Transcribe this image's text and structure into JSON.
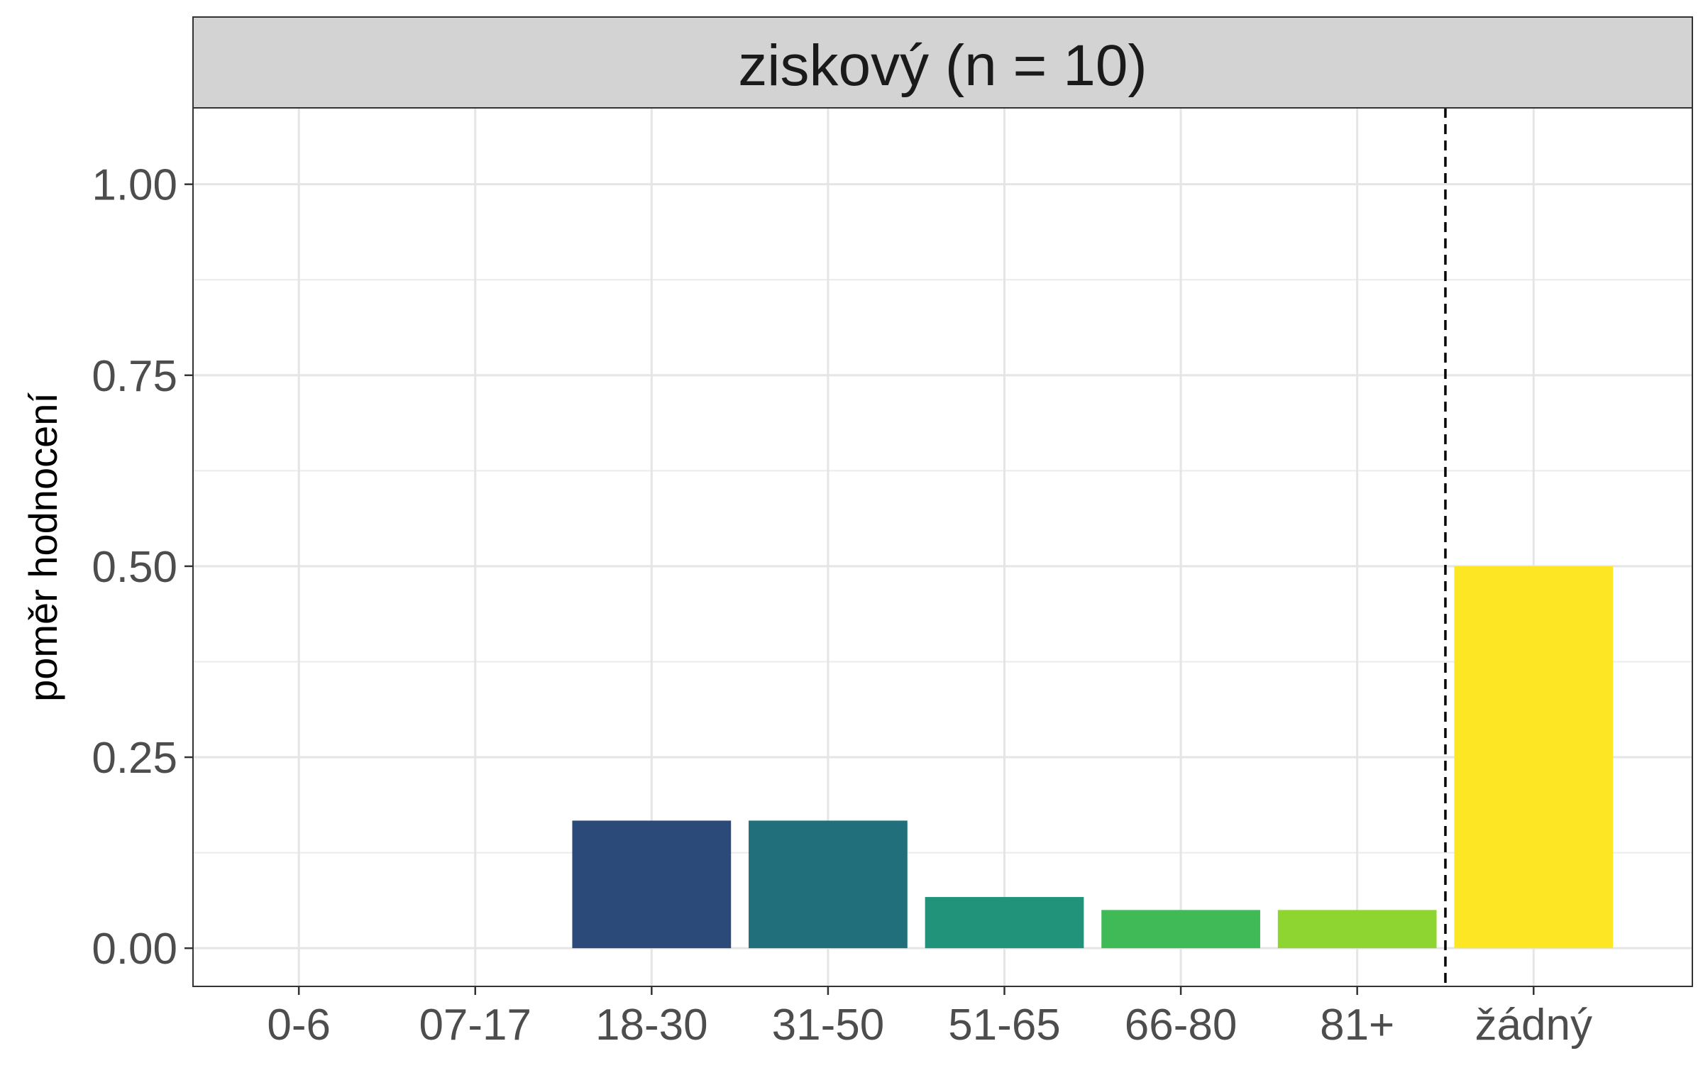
{
  "chart_data": {
    "type": "bar",
    "facet_title": "ziskový (n = 10)",
    "xlabel": "",
    "ylabel": "poměr hodnocení",
    "categories": [
      "0-6",
      "07-17",
      "18-30",
      "31-50",
      "51-65",
      "66-80",
      "81+",
      "žádný"
    ],
    "values": [
      0,
      0,
      0.167,
      0.167,
      0.067,
      0.05,
      0.05,
      0.5
    ],
    "colors": [
      "#440154",
      "#46337e",
      "#2b4a7a",
      "#216f7a",
      "#21937a",
      "#3fba57",
      "#8fd532",
      "#fde725"
    ],
    "ylim": [
      -0.05,
      1.1
    ],
    "yticks": [
      0,
      0.25,
      0.5,
      0.75,
      1
    ],
    "ytick_labels": [
      "0.00",
      "0.25",
      "0.50",
      "0.75",
      "1.00"
    ],
    "reference_line": {
      "between": [
        "81+",
        "žádný"
      ],
      "style": "dashed"
    },
    "grid": true,
    "legend": "none"
  }
}
